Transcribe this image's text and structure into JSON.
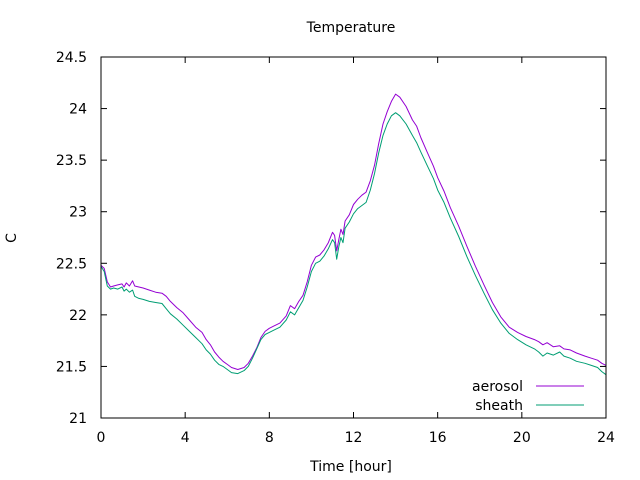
{
  "chart_data": {
    "type": "line",
    "title": "Temperature",
    "xlabel": "Time [hour]",
    "ylabel": "C",
    "xlim": [
      0,
      24
    ],
    "ylim": [
      21,
      24.5
    ],
    "x_ticks": [
      "0",
      "4",
      "8",
      "12",
      "16",
      "20",
      "24"
    ],
    "y_ticks": [
      "21",
      "21.5",
      "22",
      "22.5",
      "23",
      "23.5",
      "24",
      "24.5"
    ],
    "grid": false,
    "legend_position": "bottom-right",
    "series": [
      {
        "name": "aerosol",
        "color": "#9400d3",
        "points": [
          [
            0.0,
            22.48
          ],
          [
            0.15,
            22.45
          ],
          [
            0.3,
            22.32
          ],
          [
            0.45,
            22.27
          ],
          [
            0.6,
            22.28
          ],
          [
            0.8,
            22.29
          ],
          [
            1.0,
            22.3
          ],
          [
            1.1,
            22.27
          ],
          [
            1.2,
            22.31
          ],
          [
            1.35,
            22.28
          ],
          [
            1.5,
            22.33
          ],
          [
            1.6,
            22.28
          ],
          [
            1.8,
            22.27
          ],
          [
            2.0,
            22.26
          ],
          [
            2.3,
            22.24
          ],
          [
            2.6,
            22.22
          ],
          [
            2.9,
            22.21
          ],
          [
            3.1,
            22.18
          ],
          [
            3.3,
            22.13
          ],
          [
            3.6,
            22.07
          ],
          [
            3.9,
            22.02
          ],
          [
            4.2,
            21.95
          ],
          [
            4.5,
            21.88
          ],
          [
            4.8,
            21.83
          ],
          [
            5.0,
            21.76
          ],
          [
            5.2,
            21.71
          ],
          [
            5.4,
            21.64
          ],
          [
            5.6,
            21.59
          ],
          [
            5.8,
            21.55
          ],
          [
            6.0,
            21.52
          ],
          [
            6.2,
            21.49
          ],
          [
            6.5,
            21.47
          ],
          [
            6.8,
            21.49
          ],
          [
            7.0,
            21.53
          ],
          [
            7.2,
            21.6
          ],
          [
            7.4,
            21.68
          ],
          [
            7.6,
            21.78
          ],
          [
            7.8,
            21.84
          ],
          [
            8.0,
            21.87
          ],
          [
            8.2,
            21.89
          ],
          [
            8.5,
            21.92
          ],
          [
            8.8,
            21.99
          ],
          [
            9.0,
            22.09
          ],
          [
            9.2,
            22.06
          ],
          [
            9.4,
            22.13
          ],
          [
            9.6,
            22.19
          ],
          [
            9.8,
            22.32
          ],
          [
            10.0,
            22.48
          ],
          [
            10.2,
            22.56
          ],
          [
            10.4,
            22.58
          ],
          [
            10.6,
            22.63
          ],
          [
            10.8,
            22.7
          ],
          [
            11.0,
            22.8
          ],
          [
            11.1,
            22.77
          ],
          [
            11.2,
            22.62
          ],
          [
            11.3,
            22.73
          ],
          [
            11.4,
            22.83
          ],
          [
            11.5,
            22.78
          ],
          [
            11.6,
            22.91
          ],
          [
            11.8,
            22.97
          ],
          [
            12.0,
            23.07
          ],
          [
            12.2,
            23.12
          ],
          [
            12.4,
            23.16
          ],
          [
            12.6,
            23.19
          ],
          [
            12.8,
            23.3
          ],
          [
            13.0,
            23.45
          ],
          [
            13.2,
            23.66
          ],
          [
            13.4,
            23.85
          ],
          [
            13.6,
            23.97
          ],
          [
            13.8,
            24.07
          ],
          [
            14.0,
            24.14
          ],
          [
            14.2,
            24.11
          ],
          [
            14.5,
            24.02
          ],
          [
            14.8,
            23.89
          ],
          [
            15.0,
            23.83
          ],
          [
            15.2,
            23.72
          ],
          [
            15.5,
            23.58
          ],
          [
            15.8,
            23.44
          ],
          [
            16.0,
            23.33
          ],
          [
            16.3,
            23.2
          ],
          [
            16.6,
            23.04
          ],
          [
            17.0,
            22.86
          ],
          [
            17.4,
            22.66
          ],
          [
            17.8,
            22.47
          ],
          [
            18.2,
            22.29
          ],
          [
            18.6,
            22.12
          ],
          [
            19.0,
            21.98
          ],
          [
            19.4,
            21.88
          ],
          [
            19.8,
            21.83
          ],
          [
            20.2,
            21.79
          ],
          [
            20.6,
            21.76
          ],
          [
            20.8,
            21.74
          ],
          [
            21.0,
            21.71
          ],
          [
            21.2,
            21.73
          ],
          [
            21.5,
            21.69
          ],
          [
            21.8,
            21.7
          ],
          [
            22.0,
            21.67
          ],
          [
            22.3,
            21.66
          ],
          [
            22.6,
            21.63
          ],
          [
            23.0,
            21.6
          ],
          [
            23.3,
            21.58
          ],
          [
            23.6,
            21.56
          ],
          [
            23.8,
            21.53
          ],
          [
            24.0,
            21.51
          ]
        ]
      },
      {
        "name": "sheath",
        "color": "#009e73",
        "points": [
          [
            0.0,
            22.47
          ],
          [
            0.15,
            22.42
          ],
          [
            0.3,
            22.28
          ],
          [
            0.45,
            22.25
          ],
          [
            0.6,
            22.26
          ],
          [
            0.8,
            22.25
          ],
          [
            1.0,
            22.27
          ],
          [
            1.1,
            22.23
          ],
          [
            1.2,
            22.25
          ],
          [
            1.35,
            22.22
          ],
          [
            1.5,
            22.24
          ],
          [
            1.6,
            22.18
          ],
          [
            1.8,
            22.16
          ],
          [
            2.0,
            22.15
          ],
          [
            2.3,
            22.13
          ],
          [
            2.6,
            22.12
          ],
          [
            2.9,
            22.11
          ],
          [
            3.1,
            22.06
          ],
          [
            3.3,
            22.01
          ],
          [
            3.6,
            21.96
          ],
          [
            3.9,
            21.9
          ],
          [
            4.2,
            21.84
          ],
          [
            4.5,
            21.78
          ],
          [
            4.8,
            21.72
          ],
          [
            5.0,
            21.66
          ],
          [
            5.2,
            21.62
          ],
          [
            5.4,
            21.56
          ],
          [
            5.6,
            21.52
          ],
          [
            5.8,
            21.5
          ],
          [
            6.0,
            21.47
          ],
          [
            6.2,
            21.44
          ],
          [
            6.5,
            21.43
          ],
          [
            6.8,
            21.46
          ],
          [
            7.0,
            21.5
          ],
          [
            7.2,
            21.58
          ],
          [
            7.4,
            21.67
          ],
          [
            7.6,
            21.76
          ],
          [
            7.8,
            21.81
          ],
          [
            8.0,
            21.83
          ],
          [
            8.2,
            21.85
          ],
          [
            8.5,
            21.88
          ],
          [
            8.8,
            21.95
          ],
          [
            9.0,
            22.03
          ],
          [
            9.2,
            22.0
          ],
          [
            9.4,
            22.07
          ],
          [
            9.6,
            22.14
          ],
          [
            9.8,
            22.27
          ],
          [
            10.0,
            22.42
          ],
          [
            10.2,
            22.5
          ],
          [
            10.4,
            22.52
          ],
          [
            10.6,
            22.57
          ],
          [
            10.8,
            22.64
          ],
          [
            11.0,
            22.73
          ],
          [
            11.1,
            22.7
          ],
          [
            11.2,
            22.54
          ],
          [
            11.3,
            22.66
          ],
          [
            11.4,
            22.75
          ],
          [
            11.5,
            22.7
          ],
          [
            11.6,
            22.84
          ],
          [
            11.8,
            22.9
          ],
          [
            12.0,
            22.98
          ],
          [
            12.2,
            23.03
          ],
          [
            12.4,
            23.06
          ],
          [
            12.6,
            23.09
          ],
          [
            12.8,
            23.21
          ],
          [
            13.0,
            23.37
          ],
          [
            13.2,
            23.57
          ],
          [
            13.4,
            23.74
          ],
          [
            13.6,
            23.85
          ],
          [
            13.8,
            23.93
          ],
          [
            14.0,
            23.96
          ],
          [
            14.2,
            23.93
          ],
          [
            14.5,
            23.85
          ],
          [
            14.8,
            23.74
          ],
          [
            15.0,
            23.67
          ],
          [
            15.2,
            23.58
          ],
          [
            15.5,
            23.45
          ],
          [
            15.8,
            23.32
          ],
          [
            16.0,
            23.21
          ],
          [
            16.3,
            23.09
          ],
          [
            16.6,
            22.94
          ],
          [
            17.0,
            22.76
          ],
          [
            17.4,
            22.56
          ],
          [
            17.8,
            22.38
          ],
          [
            18.2,
            22.21
          ],
          [
            18.6,
            22.05
          ],
          [
            19.0,
            21.92
          ],
          [
            19.4,
            21.82
          ],
          [
            19.8,
            21.76
          ],
          [
            20.2,
            21.71
          ],
          [
            20.6,
            21.67
          ],
          [
            20.8,
            21.64
          ],
          [
            21.0,
            21.6
          ],
          [
            21.2,
            21.63
          ],
          [
            21.5,
            21.61
          ],
          [
            21.8,
            21.64
          ],
          [
            22.0,
            21.6
          ],
          [
            22.3,
            21.58
          ],
          [
            22.6,
            21.55
          ],
          [
            23.0,
            21.53
          ],
          [
            23.3,
            21.51
          ],
          [
            23.6,
            21.49
          ],
          [
            23.8,
            21.45
          ],
          [
            24.0,
            21.42
          ]
        ]
      }
    ]
  }
}
